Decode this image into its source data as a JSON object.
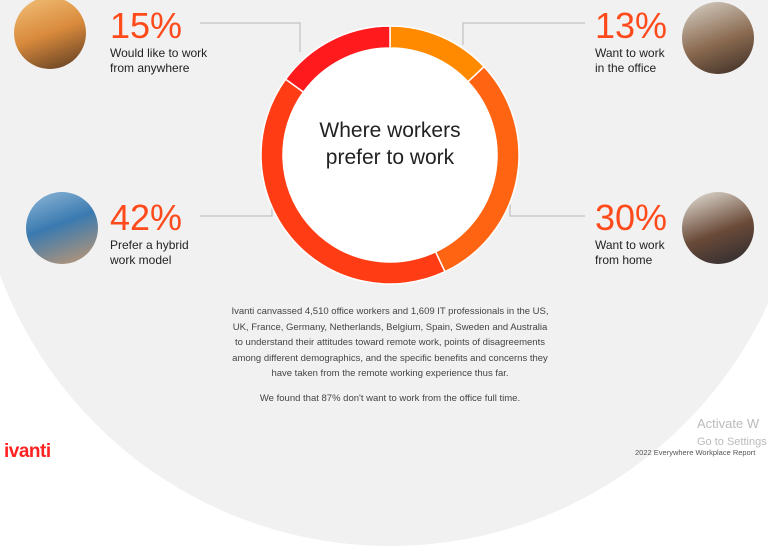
{
  "center_title": "Where workers prefer to work",
  "chart_data": {
    "type": "pie",
    "title": "Where workers prefer to work",
    "categories": [
      "Want to work in the office",
      "Want to work from home",
      "Prefer a hybrid work model",
      "Would like to work from anywhere"
    ],
    "values": [
      13,
      30,
      42,
      15
    ],
    "colors": [
      "#ff8a00",
      "#ff6412",
      "#ff3c14",
      "#ff1a1e"
    ]
  },
  "stats": [
    {
      "pct": "15%",
      "label1": "Would like to work",
      "label2": "from anywhere"
    },
    {
      "pct": "13%",
      "label1": "Want to work",
      "label2": "in the office"
    },
    {
      "pct": "42%",
      "label1": "Prefer a hybrid",
      "label2": "work model"
    },
    {
      "pct": "30%",
      "label1": "Want to work",
      "label2": "from home"
    }
  ],
  "body": [
    "Ivanti canvassed 4,510 office workers and 1,609 IT professionals in the US, UK, France, Germany, Netherlands, Belgium, Spain, Sweden and Australia to understand their attitudes toward remote work, points of disagreements among different demographics, and the specific benefits and concerns they have taken from the remote working experience thus far.",
    "We found that 87% don't want to work from the office full time."
  ],
  "footer": {
    "logo": "ivanti",
    "report": "2022 Everywhere Workplace Report"
  },
  "watermark": {
    "line1": "Activate W",
    "line2": "Go to Settings"
  }
}
